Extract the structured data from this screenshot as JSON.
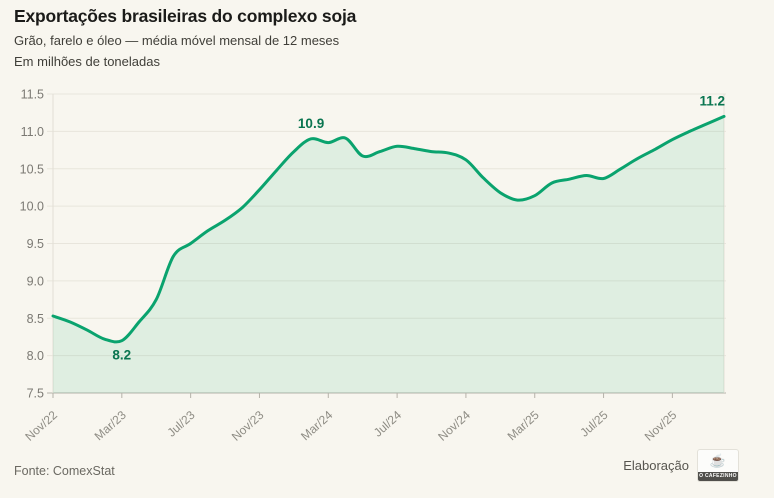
{
  "header": {
    "title": "Exportações brasileiras do complexo soja",
    "subtitle1": "Grão, farelo e óleo — média móvel mensal de 12 meses",
    "subtitle2": "Em milhões de toneladas"
  },
  "footer": {
    "source": "Fonte: ComexStat",
    "credit_label": "Elaboração",
    "logo_icon": "coffee-cup-icon",
    "logo_text": "O CAFEZINHO"
  },
  "chart_data": {
    "type": "area",
    "title": "Exportações brasileiras do complexo soja",
    "ylabel": "Em milhões de toneladas",
    "xlabel": "",
    "grid": true,
    "ylim": [
      7.5,
      11.5
    ],
    "ytick_step": 0.5,
    "x": [
      "Nov/22",
      "Dez/22",
      "Jan/23",
      "Fev/23",
      "Mar/23",
      "Abr/23",
      "Mai/23",
      "Jun/23",
      "Jul/23",
      "Ago/23",
      "Set/23",
      "Out/23",
      "Nov/23",
      "Dez/23",
      "Jan/24",
      "Fev/24",
      "Mar/24",
      "Abr/24",
      "Mai/24",
      "Jun/24",
      "Jul/24",
      "Ago/24",
      "Set/24",
      "Out/24",
      "Nov/24",
      "Dez/24",
      "Jan/25",
      "Fev/25",
      "Mar/25",
      "Abr/25",
      "Mai/25",
      "Jun/25",
      "Jul/25",
      "Ago/25",
      "Set/25",
      "Out/25",
      "Nov/25",
      "Dez/25",
      "Jan/26",
      "Fev/26"
    ],
    "values": [
      8.53,
      8.45,
      8.34,
      8.22,
      8.2,
      8.45,
      8.75,
      9.33,
      9.5,
      9.67,
      9.81,
      9.98,
      10.22,
      10.48,
      10.73,
      10.9,
      10.85,
      10.91,
      10.67,
      10.73,
      10.8,
      10.77,
      10.73,
      10.71,
      10.62,
      10.38,
      10.18,
      10.08,
      10.14,
      10.31,
      10.36,
      10.41,
      10.37,
      10.5,
      10.64,
      10.76,
      10.89,
      11.0,
      11.1,
      11.2
    ],
    "xticks": [
      {
        "index": 0,
        "label": "Nov/22"
      },
      {
        "index": 4,
        "label": "Mar/23"
      },
      {
        "index": 8,
        "label": "Jul/23"
      },
      {
        "index": 12,
        "label": "Nov/23"
      },
      {
        "index": 16,
        "label": "Mar/24"
      },
      {
        "index": 20,
        "label": "Jul/24"
      },
      {
        "index": 24,
        "label": "Nov/24"
      },
      {
        "index": 28,
        "label": "Mar/25"
      },
      {
        "index": 32,
        "label": "Jul/25"
      },
      {
        "index": 36,
        "label": "Nov/25"
      }
    ],
    "annotations": [
      {
        "index": 4,
        "label": "8.2",
        "placement": "below"
      },
      {
        "index": 15,
        "label": "10.9",
        "placement": "above"
      },
      {
        "index": 39,
        "label": "11.2",
        "placement": "above-end"
      }
    ],
    "colors": {
      "line": "#0aa36e",
      "fill": "rgba(10,163,110,0.10)",
      "annotation": "#0a7550",
      "grid": "#e8e5dc",
      "axis": "#b5b2a9",
      "boundary": "#e2dfd6",
      "ytick_label": "#7b7973",
      "xtick_label": "#8e8c84",
      "background": "#f8f6ef"
    }
  }
}
